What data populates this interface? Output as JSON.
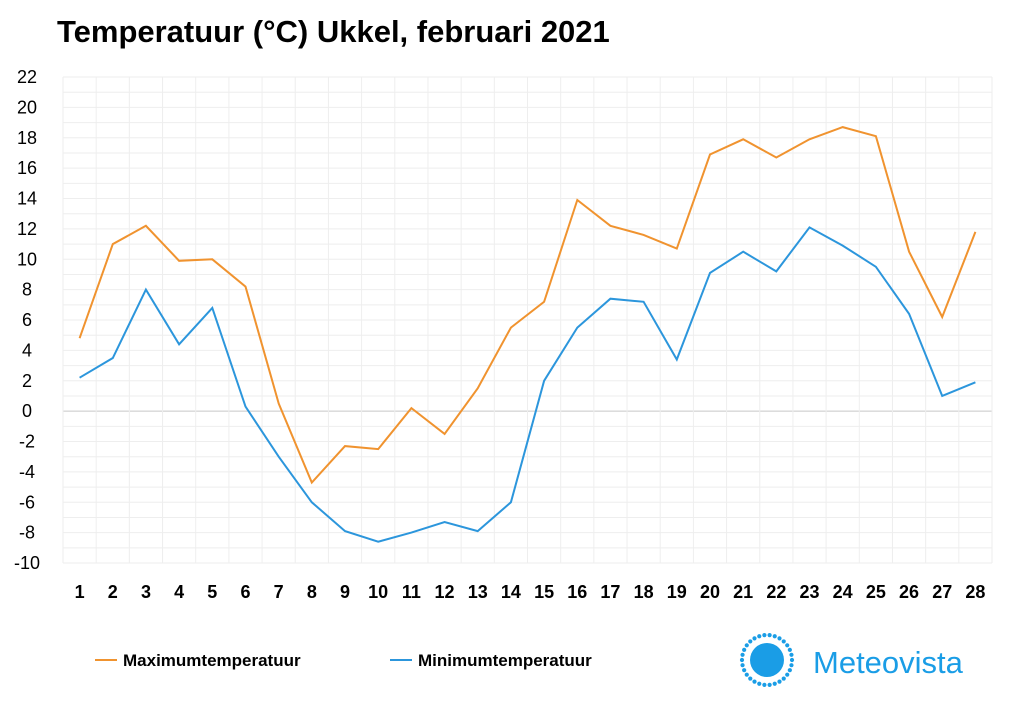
{
  "chart_data": {
    "type": "line",
    "title": "Temperatuur (°C)  Ukkel, februari 2021",
    "xlabel": "",
    "ylabel": "",
    "ylim": [
      -10,
      22
    ],
    "yticks": [
      "22",
      "20",
      "18",
      "16",
      "14",
      "12",
      "10",
      "8",
      "6",
      "4",
      "2",
      "0",
      "-2",
      "-4",
      "-6",
      "-8",
      "-10"
    ],
    "categories": [
      "1",
      "2",
      "3",
      "4",
      "5",
      "6",
      "7",
      "8",
      "9",
      "10",
      "11",
      "12",
      "13",
      "14",
      "15",
      "16",
      "17",
      "18",
      "19",
      "20",
      "21",
      "22",
      "23",
      "24",
      "25",
      "26",
      "27",
      "28"
    ],
    "grid": true,
    "legend_position": "bottom-left",
    "series": [
      {
        "name": "Maximumtemperatuur",
        "color": "#f0932f",
        "values": [
          4.8,
          11.0,
          12.2,
          9.9,
          10.0,
          8.2,
          0.5,
          -4.7,
          -2.3,
          -2.5,
          0.2,
          -1.5,
          1.5,
          5.5,
          7.2,
          13.9,
          12.2,
          11.6,
          10.7,
          16.9,
          17.9,
          16.7,
          17.9,
          18.7,
          18.1,
          10.5,
          6.2,
          11.8
        ]
      },
      {
        "name": "Minimumtemperatuur",
        "color": "#2c96dc",
        "values": [
          2.2,
          3.5,
          8.0,
          4.4,
          6.8,
          0.3,
          -3.0,
          -6.0,
          -7.9,
          -8.6,
          -8.0,
          -7.3,
          -7.9,
          -6.0,
          2.0,
          5.5,
          7.4,
          7.2,
          3.4,
          9.1,
          10.5,
          9.2,
          12.1,
          10.9,
          9.5,
          6.4,
          1.0,
          1.9
        ]
      }
    ]
  },
  "branding": {
    "name": "Meteovista",
    "icon": "sun-icon",
    "color": "#1a9de6"
  }
}
